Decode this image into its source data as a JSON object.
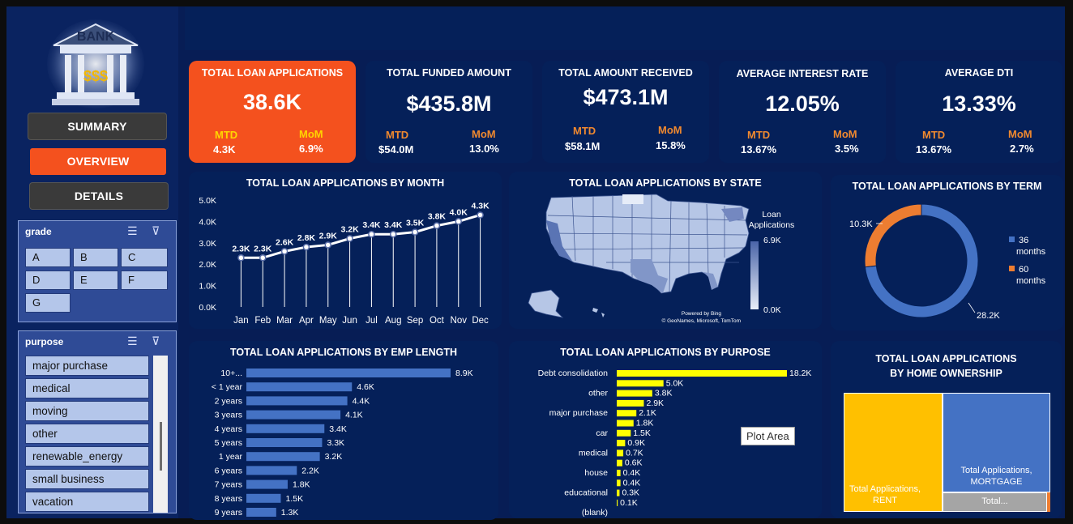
{
  "nav": {
    "summary": "SUMMARY",
    "overview": "OVERVIEW",
    "details": "DETAILS"
  },
  "logo": {
    "bank": "BANK",
    "money": "$$$"
  },
  "slicers": {
    "grade": {
      "title": "grade",
      "items": [
        "A",
        "B",
        "C",
        "D",
        "E",
        "F",
        "G"
      ]
    },
    "purpose": {
      "title": "purpose",
      "items": [
        "major purchase",
        "medical",
        "moving",
        "other",
        "renewable_energy",
        "small business",
        "vacation"
      ]
    }
  },
  "kpis": [
    {
      "title": "TOTAL LOAN APPLICATIONS",
      "value": "38.6K",
      "mtd_label": "MTD",
      "mtd": "4.3K",
      "mom_label": "MoM",
      "mom": "6.9%"
    },
    {
      "title": "TOTAL FUNDED AMOUNT",
      "value": "$435.8M",
      "mtd_label": "MTD",
      "mtd": "$54.0M",
      "mom_label": "MoM",
      "mom": "13.0%"
    },
    {
      "title": "TOTAL AMOUNT RECEIVED",
      "value": "$473.1M",
      "mtd_label": "MTD",
      "mtd": "$58.1M",
      "mom_label": "MoM",
      "mom": "15.8%"
    },
    {
      "title": "AVERAGE INTEREST RATE",
      "value": "12.05%",
      "mtd_label": "MTD",
      "mtd": "13.67%",
      "mom_label": "MoM",
      "mom": "3.5%"
    },
    {
      "title": "AVERAGE DTI",
      "value": "13.33%",
      "mtd_label": "MTD",
      "mtd": "13.67%",
      "mom_label": "MoM",
      "mom": "2.7%"
    }
  ],
  "map": {
    "title": "TOTAL LOAN APPLICATIONS BY STATE",
    "legend_title_1": "Loan",
    "legend_title_2": "Applications",
    "legend_max": "6.9K",
    "legend_min": "0.0K",
    "credit_1": "Powered by Bing",
    "credit_2": "© GeoNames, Microsoft, TomTom"
  },
  "plot_area_tip": "Plot Area",
  "colors": {
    "accent": "#f4511e",
    "card": "#052059",
    "bar": "#4472c4",
    "bar_alt": "#ffff00",
    "treemap_rent": "#ffc000"
  },
  "chart_data": [
    {
      "type": "line",
      "title": "TOTAL LOAN APPLICATIONS BY MONTH",
      "categories": [
        "Jan",
        "Feb",
        "Mar",
        "Apr",
        "May",
        "Jun",
        "Jul",
        "Aug",
        "Sep",
        "Oct",
        "Nov",
        "Dec"
      ],
      "values": [
        2.3,
        2.3,
        2.6,
        2.8,
        2.9,
        3.2,
        3.4,
        3.4,
        3.5,
        3.8,
        4.0,
        4.3
      ],
      "labels": [
        "2.3K",
        "2.3K",
        "2.6K",
        "2.8K",
        "2.9K",
        "3.2K",
        "3.4K",
        "3.4K",
        "3.5K",
        "3.8K",
        "4.0K",
        "4.3K"
      ],
      "yticks": [
        "0.0K",
        "1.0K",
        "2.0K",
        "3.0K",
        "4.0K",
        "5.0K"
      ],
      "ylim": [
        0,
        5
      ]
    },
    {
      "type": "pie",
      "title": "TOTAL LOAN APPLICATIONS BY TERM",
      "series": [
        {
          "name": "36 months",
          "legend_1": "36",
          "legend_2": "months",
          "value": 28.2,
          "label": "28.2K",
          "color": "#4472c4"
        },
        {
          "name": "60 months",
          "legend_1": "60",
          "legend_2": "months",
          "value": 10.3,
          "label": "10.3K",
          "color": "#ed7d31"
        }
      ]
    },
    {
      "type": "bar",
      "title": "TOTAL LOAN APPLICATIONS BY EMP LENGTH",
      "categories": [
        "10+...",
        "< 1 year",
        "2 years",
        "3 years",
        "4 years",
        "5 years",
        "1 year",
        "6 years",
        "7 years",
        "8 years",
        "9 years"
      ],
      "values": [
        8.9,
        4.6,
        4.4,
        4.1,
        3.4,
        3.3,
        3.2,
        2.2,
        1.8,
        1.5,
        1.3
      ],
      "labels": [
        "8.9K",
        "4.6K",
        "4.4K",
        "4.1K",
        "3.4K",
        "3.3K",
        "3.2K",
        "2.2K",
        "1.8K",
        "1.5K",
        "1.3K"
      ]
    },
    {
      "type": "bar",
      "title": "TOTAL LOAN APPLICATIONS BY PURPOSE",
      "categories": [
        "Debt consolidation",
        "",
        "other",
        "",
        "major purchase",
        "",
        "car",
        "",
        "medical",
        "",
        "house",
        "",
        "educational",
        "",
        "(blank)"
      ],
      "values": [
        18.2,
        5.0,
        3.8,
        2.9,
        2.1,
        1.8,
        1.5,
        0.9,
        0.7,
        0.6,
        0.4,
        0.4,
        0.3,
        0.1,
        0
      ],
      "labels": [
        "18.2K",
        "5.0K",
        "3.8K",
        "2.9K",
        "2.1K",
        "1.8K",
        "1.5K",
        "0.9K",
        "0.7K",
        "0.6K",
        "0.4K",
        "0.4K",
        "0.3K",
        "0.1K",
        ""
      ]
    },
    {
      "type": "treemap",
      "title_1": "TOTAL LOAN APPLICATIONS",
      "title_2": "BY HOME OWNERSHIP",
      "items": [
        {
          "label_1": "Total Applications,",
          "label_2": "RENT",
          "color": "#ffc000"
        },
        {
          "label_1": "Total Applications,",
          "label_2": "MORTGAGE",
          "color": "#4472c4"
        },
        {
          "label_1": "Total...",
          "label_2": "",
          "color": "#a5a5a5"
        }
      ]
    }
  ]
}
